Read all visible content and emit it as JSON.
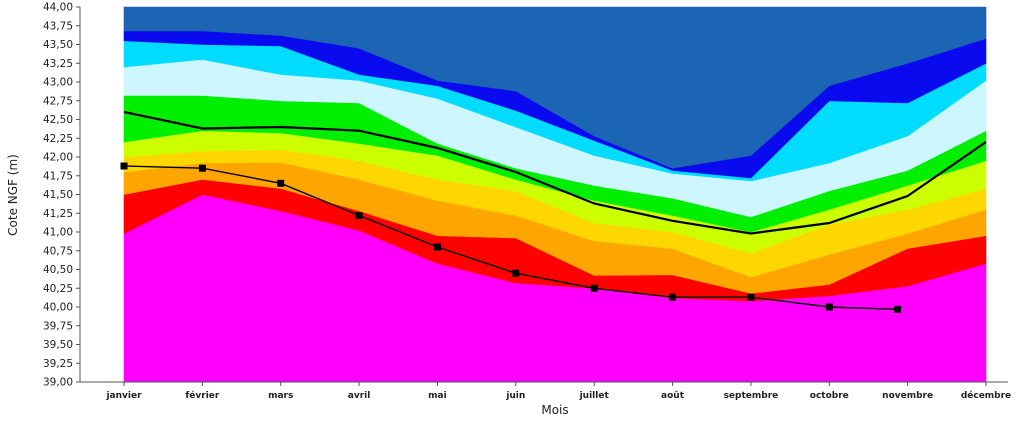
{
  "chart_data": {
    "type": "area",
    "title": "",
    "xlabel": "Mois",
    "ylabel": "Cote NGF  (m)",
    "categories": [
      "janvier",
      "février",
      "mars",
      "avril",
      "mai",
      "juin",
      "juillet",
      "août",
      "septembre",
      "octobre",
      "novembre",
      "décembre"
    ],
    "ylim": [
      39.0,
      44.0
    ],
    "yticks": [
      "39,00",
      "39,25",
      "39,50",
      "39,75",
      "40,00",
      "40,25",
      "40,50",
      "40,75",
      "41,00",
      "41,25",
      "41,50",
      "41,75",
      "42,00",
      "42,25",
      "42,50",
      "42,75",
      "43,00",
      "43,25",
      "43,50",
      "43,75",
      "44,00"
    ],
    "grid": false,
    "bands": [
      {
        "color": "#ff00ff",
        "upper": [
          40.98,
          41.5,
          41.28,
          41.02,
          40.58,
          40.32,
          40.25,
          40.12,
          40.08,
          40.15,
          40.28,
          40.58
        ]
      },
      {
        "color": "#ff0000",
        "upper": [
          41.5,
          41.7,
          41.58,
          41.28,
          40.95,
          40.92,
          40.42,
          40.43,
          40.18,
          40.3,
          40.78,
          40.95
        ]
      },
      {
        "color": "#ffa500",
        "upper": [
          41.8,
          41.92,
          41.93,
          41.7,
          41.42,
          41.22,
          40.88,
          40.78,
          40.4,
          40.7,
          40.98,
          41.3
        ]
      },
      {
        "color": "#ffd700",
        "upper": [
          42.0,
          42.08,
          42.1,
          41.95,
          41.7,
          41.55,
          41.12,
          41.0,
          40.72,
          41.1,
          41.3,
          41.58
        ]
      },
      {
        "color": "#ccff00",
        "upper": [
          42.2,
          42.35,
          42.32,
          42.18,
          42.02,
          41.7,
          41.42,
          41.22,
          41.0,
          41.3,
          41.62,
          41.95
        ]
      },
      {
        "color": "#00ee00",
        "upper": [
          42.82,
          42.82,
          42.75,
          42.72,
          42.18,
          41.85,
          41.62,
          41.45,
          41.2,
          41.55,
          41.82,
          42.35
        ]
      },
      {
        "color": "#cdf6ff",
        "upper": [
          43.2,
          43.3,
          43.1,
          43.02,
          42.78,
          42.4,
          42.02,
          41.78,
          41.68,
          41.92,
          42.28,
          43.02
        ]
      },
      {
        "color": "#00dcff",
        "upper": [
          43.55,
          43.5,
          43.48,
          43.1,
          42.95,
          42.62,
          42.22,
          41.82,
          41.72,
          42.75,
          42.72,
          43.25
        ]
      },
      {
        "color": "#0a0aee",
        "upper": [
          43.68,
          43.68,
          43.62,
          43.45,
          43.02,
          42.88,
          42.28,
          41.85,
          42.02,
          42.95,
          43.25,
          43.58
        ]
      },
      {
        "color": "#1c64b4",
        "upper": [
          44.0,
          44.0,
          44.0,
          44.0,
          44.0,
          44.0,
          44.0,
          44.0,
          44.0,
          44.0,
          44.0,
          44.0
        ]
      }
    ],
    "series": [
      {
        "values": [
          42.6,
          42.38,
          42.4,
          42.35,
          42.12,
          41.8,
          41.38,
          41.15,
          40.98,
          41.12,
          41.48,
          42.2
        ],
        "color": "#000000",
        "markers": false
      },
      {
        "values": [
          41.88,
          41.85,
          41.65,
          41.22,
          40.8,
          40.45,
          40.25,
          40.13,
          40.13,
          40.0,
          39.97,
          null
        ],
        "color": "#000000",
        "markers": true
      }
    ]
  }
}
